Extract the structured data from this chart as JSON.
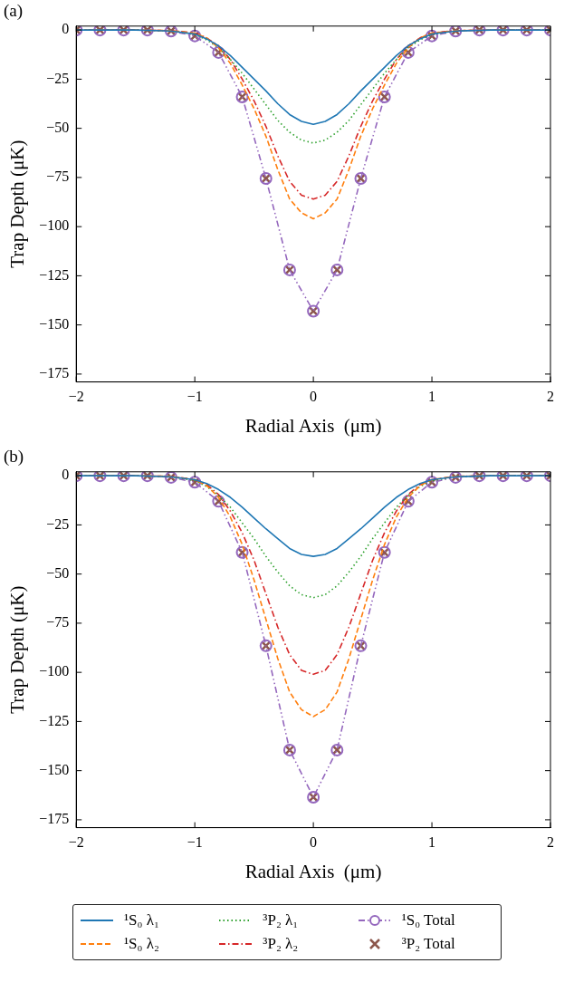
{
  "chart_data": [
    {
      "type": "line",
      "title": "(a)",
      "xlabel": "Radial Axis  (μm)",
      "ylabel": "Trap Depth (μK)",
      "xlim": [
        -2,
        2
      ],
      "xticks": [
        -2,
        -1,
        0,
        1,
        2
      ],
      "ylim": [
        -179,
        2
      ],
      "yticks": [
        0,
        -25,
        -50,
        -75,
        -100,
        -125,
        -150,
        -175
      ],
      "grid": false,
      "series": [
        {
          "color": "#1f77b4",
          "line_style": "solid",
          "marker": "none",
          "x": [
            -2,
            -1.5,
            -1.2,
            -1,
            -0.9,
            -0.8,
            -0.7,
            -0.6,
            -0.5,
            -0.4,
            -0.3,
            -0.2,
            -0.1,
            0,
            0.1,
            0.2,
            0.3,
            0.4,
            0.5,
            0.6,
            0.7,
            0.8,
            0.9,
            1,
            1.2,
            1.5,
            2
          ],
          "values": [
            0,
            0,
            -0.5,
            -2,
            -4.5,
            -8,
            -13,
            -19,
            -25,
            -31,
            -37.5,
            -43,
            -46.5,
            -48,
            -46.5,
            -43,
            -37.5,
            -31,
            -25,
            -19,
            -13,
            -8,
            -4.5,
            -2,
            -0.5,
            0,
            0
          ]
        },
        {
          "color": "#ff7f0e",
          "line_style": "dashed",
          "marker": "none",
          "x": [
            -2,
            -1.5,
            -1.2,
            -1,
            -0.9,
            -0.8,
            -0.7,
            -0.6,
            -0.5,
            -0.4,
            -0.3,
            -0.2,
            -0.1,
            0,
            0.1,
            0.2,
            0.3,
            0.4,
            0.5,
            0.6,
            0.7,
            0.8,
            0.9,
            1,
            1.2,
            1.5,
            2
          ],
          "values": [
            0,
            0,
            -0.3,
            -1.6,
            -4,
            -9,
            -17,
            -28,
            -40,
            -54,
            -71,
            -86,
            -93,
            -96,
            -93,
            -86,
            -71,
            -54,
            -40,
            -28,
            -17,
            -9,
            -4,
            -1.6,
            -0.3,
            0,
            0
          ]
        },
        {
          "color": "#2ca02c",
          "line_style": "dotted",
          "marker": "none",
          "x": [
            -2,
            -1.5,
            -1.2,
            -1,
            -0.9,
            -0.8,
            -0.7,
            -0.6,
            -0.5,
            -0.4,
            -0.3,
            -0.2,
            -0.1,
            0,
            0.1,
            0.2,
            0.3,
            0.4,
            0.5,
            0.6,
            0.7,
            0.8,
            0.9,
            1,
            1.2
          ],
          "values": [
            0,
            0,
            -0.5,
            -2.2,
            -5,
            -9,
            -15,
            -22,
            -30,
            -38,
            -46,
            -52,
            -56,
            -57.5,
            -56,
            -52,
            -46,
            -38,
            -30,
            -22,
            -15,
            -9,
            -5,
            -2.2,
            -0.5
          ]
        },
        {
          "color": "#d62728",
          "line_style": "dashdot",
          "marker": "none",
          "x": [
            -2,
            -1.5,
            -1.2,
            -1,
            -0.9,
            -0.8,
            -0.7,
            -0.6,
            -0.5,
            -0.4,
            -0.3,
            -0.2,
            -0.1,
            0,
            0.1,
            0.2,
            0.3,
            0.4,
            0.5,
            0.6,
            0.7,
            0.8,
            0.9,
            1,
            1.2,
            1.5,
            2
          ],
          "values": [
            0,
            0,
            -0.3,
            -1.5,
            -4,
            -8,
            -15,
            -25,
            -36,
            -49,
            -64,
            -77,
            -84,
            -86,
            -84,
            -77,
            -64,
            -49,
            -36,
            -25,
            -15,
            -8,
            -4,
            -1.5,
            -0.3,
            0,
            0
          ]
        },
        {
          "color": "#9467bd",
          "line_style": "dashdotdot",
          "marker": "circle",
          "x": [
            -2,
            -1.8,
            -1.6,
            -1.4,
            -1.2,
            -1,
            -0.8,
            -0.6,
            -0.4,
            -0.2,
            0,
            0.2,
            0.4,
            0.6,
            0.8,
            1,
            1.2,
            1.4,
            1.6,
            1.8,
            2
          ],
          "values": [
            0,
            0,
            0,
            0,
            -0.5,
            -3,
            -11.4,
            -34,
            -75.5,
            -122,
            -143,
            -122,
            -75.5,
            -34,
            -11.4,
            -3,
            -0.5,
            0,
            0,
            0,
            0
          ]
        },
        {
          "type": "scatter",
          "color": "#8c564b",
          "marker": "cross",
          "x": [
            -2,
            -1.8,
            -1.6,
            -1.4,
            -1.2,
            -1,
            -0.8,
            -0.6,
            -0.4,
            -0.2,
            0,
            0.2,
            0.4,
            0.6,
            0.8,
            1,
            1.2,
            1.4,
            1.6,
            1.8,
            2
          ],
          "values": [
            0,
            0,
            0,
            0,
            -0.5,
            -3,
            -11.4,
            -34,
            -75.5,
            -122,
            -143,
            -122,
            -75.5,
            -34,
            -11.4,
            -3,
            -0.5,
            0,
            0,
            0,
            0
          ]
        }
      ]
    },
    {
      "type": "line",
      "title": "(b)",
      "xlabel": "Radial Axis  (μm)",
      "ylabel": "Trap Depth (μK)",
      "xlim": [
        -2,
        2
      ],
      "xticks": [
        -2,
        -1,
        0,
        1,
        2
      ],
      "ylim": [
        -179,
        2
      ],
      "yticks": [
        0,
        -25,
        -50,
        -75,
        -100,
        -125,
        -150,
        -175
      ],
      "grid": false,
      "legend": "bottom",
      "series": [
        {
          "name": "¹S₀ λ₁",
          "color": "#1f77b4",
          "line_style": "solid",
          "marker": "none",
          "x": [
            -2,
            -1.5,
            -1.2,
            -1,
            -0.9,
            -0.8,
            -0.7,
            -0.6,
            -0.5,
            -0.4,
            -0.3,
            -0.2,
            -0.1,
            0,
            0.1,
            0.2,
            0.3,
            0.4,
            0.5,
            0.6,
            0.7,
            0.8,
            0.9,
            1,
            1.2,
            1.5,
            2
          ],
          "values": [
            0,
            0,
            -0.5,
            -2,
            -4,
            -7,
            -11,
            -16,
            -21.5,
            -27,
            -32,
            -37,
            -40,
            -41,
            -40,
            -37,
            -32,
            -27,
            -21.5,
            -16,
            -11,
            -7,
            -4,
            -2,
            -0.5,
            0,
            0
          ]
        },
        {
          "name": "¹S₀ λ₂",
          "color": "#ff7f0e",
          "line_style": "dashed",
          "marker": "none",
          "x": [
            -2,
            -1.5,
            -1.2,
            -1,
            -0.9,
            -0.8,
            -0.7,
            -0.6,
            -0.5,
            -0.4,
            -0.3,
            -0.2,
            -0.1,
            0,
            0.1,
            0.2,
            0.3,
            0.4,
            0.5,
            0.6,
            0.7,
            0.8,
            0.9,
            1,
            1.2,
            1.5,
            2
          ],
          "values": [
            0,
            0,
            -0.3,
            -2,
            -5,
            -11,
            -21,
            -35,
            -53,
            -73,
            -93,
            -110,
            -119,
            -122.5,
            -119,
            -110,
            -93,
            -73,
            -53,
            -35,
            -21,
            -11,
            -5,
            -2,
            -0.3,
            0,
            0
          ]
        },
        {
          "name": "³P₂ λ₁",
          "color": "#2ca02c",
          "line_style": "dotted",
          "marker": "none",
          "x": [
            -2,
            -1.5,
            -1.2,
            -1,
            -0.9,
            -0.8,
            -0.7,
            -0.6,
            -0.5,
            -0.4,
            -0.3,
            -0.2,
            -0.1,
            0,
            0.1,
            0.2,
            0.3,
            0.4,
            0.5,
            0.6,
            0.7,
            0.8,
            0.9,
            1,
            1.2,
            1.5,
            2
          ],
          "values": [
            0,
            0,
            -0.5,
            -2.5,
            -5.5,
            -10,
            -16,
            -24,
            -32,
            -41,
            -49,
            -56,
            -60.5,
            -62,
            -60.5,
            -56,
            -49,
            -41,
            -32,
            -24,
            -16,
            -10,
            -5.5,
            -2.5,
            -0.5,
            0,
            0
          ]
        },
        {
          "name": "³P₂ λ₂",
          "color": "#d62728",
          "line_style": "dashdot",
          "marker": "none",
          "x": [
            -2,
            -1.5,
            -1.2,
            -1,
            -0.9,
            -0.8,
            -0.7,
            -0.6,
            -0.5,
            -0.4,
            -0.3,
            -0.2,
            -0.1,
            0,
            0.1,
            0.2,
            0.3,
            0.4,
            0.5,
            0.6,
            0.7,
            0.8,
            0.9,
            1,
            1.2,
            1.5,
            2
          ],
          "values": [
            0,
            0,
            -0.3,
            -2,
            -4.5,
            -9.5,
            -18,
            -29,
            -43,
            -60,
            -77,
            -91,
            -99,
            -101,
            -99,
            -91,
            -77,
            -60,
            -43,
            -29,
            -18,
            -9.5,
            -4.5,
            -2,
            -0.3,
            0,
            0
          ]
        },
        {
          "name": "¹S₀ Total",
          "color": "#9467bd",
          "line_style": "dashdotdot",
          "marker": "circle",
          "x": [
            -2,
            -1.8,
            -1.6,
            -1.4,
            -1.2,
            -1,
            -0.8,
            -0.6,
            -0.4,
            -0.2,
            0,
            0.2,
            0.4,
            0.6,
            0.8,
            1,
            1.2,
            1.4,
            1.6,
            1.8,
            2
          ],
          "values": [
            0,
            0,
            0,
            0,
            -0.8,
            -3.3,
            -13,
            -39,
            -86.5,
            -139.5,
            -163.5,
            -139.5,
            -86.5,
            -39,
            -13,
            -3.3,
            -0.8,
            0,
            0,
            0,
            0
          ]
        },
        {
          "name": "³P₂ Total",
          "type": "scatter",
          "color": "#8c564b",
          "marker": "cross",
          "x": [
            -2,
            -1.8,
            -1.6,
            -1.4,
            -1.2,
            -1,
            -0.8,
            -0.6,
            -0.4,
            -0.2,
            0,
            0.2,
            0.4,
            0.6,
            0.8,
            1,
            1.2,
            1.4,
            1.6,
            1.8,
            2
          ],
          "values": [
            0,
            0,
            0,
            0,
            -0.8,
            -3.3,
            -13,
            -39,
            -86.5,
            -139.5,
            -163.5,
            -139.5,
            -86.5,
            -39,
            -13,
            -3.3,
            -0.8,
            0,
            0,
            0,
            0
          ]
        }
      ]
    }
  ]
}
